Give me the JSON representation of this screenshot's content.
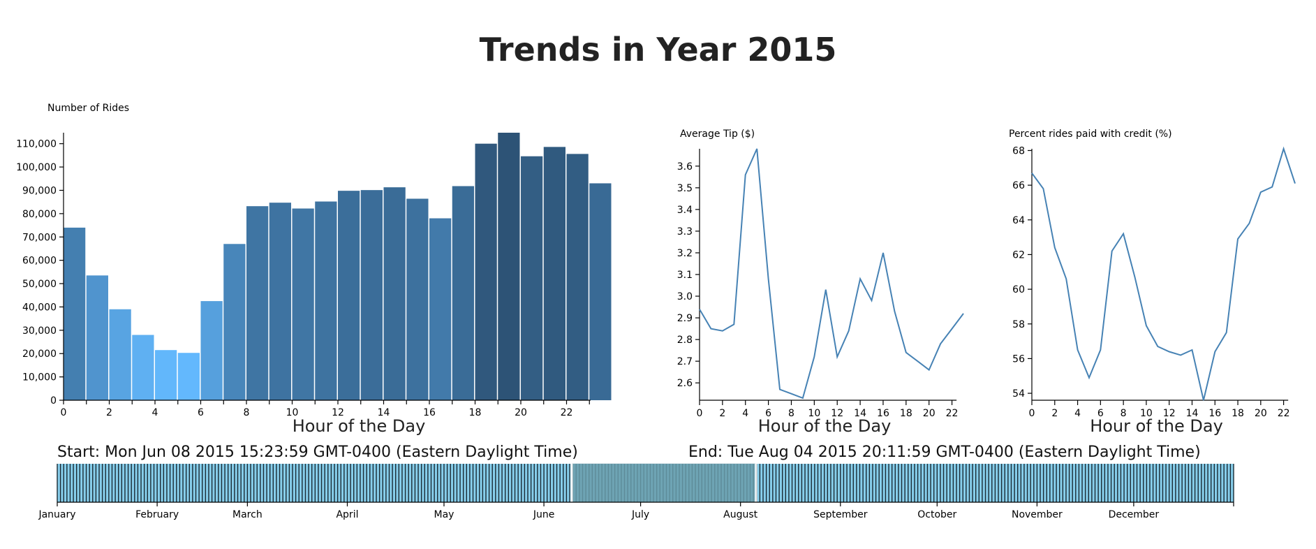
{
  "title": "Trends in Year 2015",
  "chart_data": [
    {
      "type": "bar",
      "ylabel": "Number of Rides",
      "xlabel": "Hour of the Day",
      "categories": [
        0,
        1,
        2,
        3,
        4,
        5,
        6,
        7,
        8,
        9,
        10,
        11,
        12,
        13,
        14,
        15,
        16,
        17,
        18,
        19,
        20,
        21,
        22,
        23
      ],
      "values": [
        74000,
        53500,
        39000,
        28000,
        21500,
        20300,
        42500,
        67000,
        83200,
        84700,
        82200,
        85200,
        89800,
        90100,
        91300,
        86400,
        78000,
        91800,
        110000,
        114700,
        104600,
        108600,
        105600,
        93000
      ],
      "ylim": [
        0,
        114700
      ],
      "yticks": [
        "0",
        "10,000",
        "20,000",
        "30,000",
        "40,000",
        "50,000",
        "60,000",
        "70,000",
        "80,000",
        "90,000",
        "100,000",
        "110,000"
      ],
      "xticks": [
        "0",
        "2",
        "4",
        "6",
        "8",
        "10",
        "12",
        "14",
        "16",
        "18",
        "20",
        "22"
      ],
      "colors": {
        "low": "#63b8fd",
        "high": "#2d5376"
      }
    },
    {
      "type": "line",
      "ylabel": "Average Tip ($)",
      "xlabel": "Hour of the Day",
      "x": [
        0,
        1,
        2,
        3,
        4,
        5,
        6,
        7,
        8,
        9,
        10,
        11,
        12,
        13,
        14,
        15,
        16,
        17,
        18,
        19,
        20,
        21,
        22,
        23
      ],
      "y": [
        2.94,
        2.85,
        2.84,
        2.87,
        3.56,
        3.68,
        3.08,
        2.57,
        2.55,
        2.53,
        2.72,
        3.03,
        2.72,
        2.84,
        3.08,
        2.98,
        3.2,
        2.93,
        2.74,
        2.7,
        2.66,
        2.78,
        2.85,
        2.92
      ],
      "ylim": [
        2.52,
        3.68
      ],
      "yticks": [
        "2.6",
        "2.7",
        "2.8",
        "2.9",
        "3.0",
        "3.1",
        "3.2",
        "3.3",
        "3.4",
        "3.5",
        "3.6"
      ],
      "xticks": [
        "0",
        "2",
        "4",
        "6",
        "8",
        "10",
        "12",
        "14",
        "16",
        "18",
        "20",
        "22"
      ],
      "color": "#4682b4"
    },
    {
      "type": "line",
      "ylabel": "Percent rides paid with credit (%)",
      "xlabel": "Hour of the Day",
      "x": [
        0,
        1,
        2,
        3,
        4,
        5,
        6,
        7,
        8,
        9,
        10,
        11,
        12,
        13,
        14,
        15,
        16,
        17,
        18,
        19,
        20,
        21,
        22,
        23
      ],
      "y": [
        66.7,
        65.8,
        62.4,
        60.6,
        56.5,
        54.9,
        56.5,
        62.2,
        63.2,
        60.7,
        57.9,
        56.7,
        56.4,
        56.2,
        56.5,
        53.6,
        56.4,
        57.5,
        62.9,
        63.8,
        65.6,
        65.9,
        68.1,
        66.1
      ],
      "ylim": [
        53.6,
        68.1
      ],
      "yticks": [
        "54",
        "56",
        "58",
        "60",
        "62",
        "64",
        "66",
        "68"
      ],
      "xticks": [
        "0",
        "2",
        "4",
        "6",
        "8",
        "10",
        "12",
        "14",
        "16",
        "18",
        "20",
        "22"
      ],
      "color": "#4682b4"
    }
  ],
  "brush": {
    "start_text": "Start: Mon Jun 08 2015 15:23:59 GMT-0400 (Eastern Daylight Time)",
    "end_text": "End: Tue Aug 04 2015 20:11:59 GMT-0400 (Eastern Daylight Time)",
    "months": [
      "January",
      "February",
      "March",
      "April",
      "May",
      "June",
      "July",
      "August",
      "September",
      "October",
      "November",
      "December"
    ],
    "selection_start_day": 159.6,
    "selection_end_day": 216.8,
    "days_in_year": 365,
    "fill_color": "#87ceeb",
    "selection_color": "#6a9caa"
  }
}
